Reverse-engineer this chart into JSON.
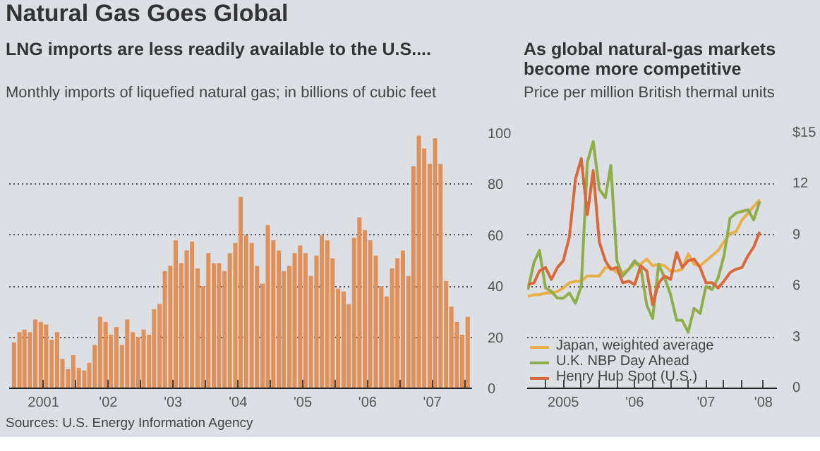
{
  "chart_data": [
    {
      "type": "bar",
      "title": "LNG imports are less readily available to the U.S....",
      "subtitle": "Monthly imports of liquefied natural gas; in billions of cubic feet",
      "annotations": [
        "Natural Gas Goes Global",
        "Sources: U.S. Energy Information Agency"
      ],
      "x": [
        "2001-01",
        "2001-02",
        "2001-03",
        "2001-04",
        "2001-05",
        "2001-06",
        "2001-07",
        "2001-08",
        "2001-09",
        "2001-10",
        "2001-11",
        "2001-12",
        "2002-01",
        "2002-02",
        "2002-03",
        "2002-04",
        "2002-05",
        "2002-06",
        "2002-07",
        "2002-08",
        "2002-09",
        "2002-10",
        "2002-11",
        "2002-12",
        "2003-01",
        "2003-02",
        "2003-03",
        "2003-04",
        "2003-05",
        "2003-06",
        "2003-07",
        "2003-08",
        "2003-09",
        "2003-10",
        "2003-11",
        "2003-12",
        "2004-01",
        "2004-02",
        "2004-03",
        "2004-04",
        "2004-05",
        "2004-06",
        "2004-07",
        "2004-08",
        "2004-09",
        "2004-10",
        "2004-11",
        "2004-12",
        "2005-01",
        "2005-02",
        "2005-03",
        "2005-04",
        "2005-05",
        "2005-06",
        "2005-07",
        "2005-08",
        "2005-09",
        "2005-10",
        "2005-11",
        "2005-12",
        "2006-01",
        "2006-02",
        "2006-03",
        "2006-04",
        "2006-05",
        "2006-06",
        "2006-07",
        "2006-08",
        "2006-09",
        "2006-10",
        "2006-11",
        "2006-12",
        "2007-01",
        "2007-02",
        "2007-03",
        "2007-04",
        "2007-05",
        "2007-06",
        "2007-07",
        "2007-08",
        "2007-09",
        "2007-10",
        "2007-11",
        "2007-12",
        "2008-01"
      ],
      "values": [
        18,
        22,
        23,
        22,
        27,
        26,
        25,
        19,
        22,
        11.5,
        7.5,
        13,
        8,
        7,
        10,
        17,
        28,
        26,
        21,
        24,
        17,
        27,
        22,
        20,
        23,
        21,
        31,
        33,
        46,
        48,
        58,
        49,
        54,
        57.5,
        47,
        40,
        53,
        49,
        49,
        46,
        53,
        57,
        75,
        60,
        57,
        48,
        41,
        64,
        58,
        54,
        46,
        48,
        53,
        56,
        53,
        44,
        52,
        60,
        58,
        51,
        39,
        38,
        33,
        59,
        67,
        62,
        58,
        52,
        40,
        36,
        47,
        51,
        54,
        44,
        87,
        99,
        94,
        88,
        98,
        88,
        42,
        32,
        26,
        21,
        28
      ],
      "color": "#e0915a",
      "xlim": [
        "2000-12-20",
        "2008-02-10"
      ],
      "xticks": [
        {
          "value": "2001-07-01",
          "label": "2001"
        },
        {
          "value": "2002-01-01",
          "label": null
        },
        {
          "value": "2002-07-01",
          "label": "'02"
        },
        {
          "value": "2003-01-01",
          "label": null
        },
        {
          "value": "2003-07-01",
          "label": "'03"
        },
        {
          "value": "2004-01-01",
          "label": null
        },
        {
          "value": "2004-07-01",
          "label": "'04"
        },
        {
          "value": "2005-01-01",
          "label": null
        },
        {
          "value": "2005-07-01",
          "label": "'05"
        },
        {
          "value": "2006-01-01",
          "label": null
        },
        {
          "value": "2006-07-01",
          "label": "'06"
        },
        {
          "value": "2007-01-01",
          "label": null
        },
        {
          "value": "2007-07-01",
          "label": "'07"
        },
        {
          "value": "2008-01-01",
          "label": null
        }
      ],
      "ylim": [
        0,
        100
      ],
      "yticks": [
        0,
        20,
        40,
        60,
        80,
        100
      ],
      "grid": "y"
    },
    {
      "type": "line",
      "title": "As global natural-gas markets become more competitive",
      "subtitle": "Price per million British thermal units",
      "x": [
        "2005-01",
        "2005-02",
        "2005-03",
        "2005-04",
        "2005-05",
        "2005-06",
        "2005-07",
        "2005-08",
        "2005-09",
        "2005-10",
        "2005-11",
        "2005-12",
        "2006-01",
        "2006-02",
        "2006-03",
        "2006-04",
        "2006-05",
        "2006-06",
        "2006-07",
        "2006-08",
        "2006-09",
        "2006-10",
        "2006-11",
        "2006-12",
        "2007-01",
        "2007-02",
        "2007-03",
        "2007-04",
        "2007-05",
        "2007-06",
        "2007-07",
        "2007-08",
        "2007-09",
        "2007-10",
        "2007-11",
        "2007-12",
        "2008-01",
        "2008-02",
        "2008-03",
        "2008-04"
      ],
      "series": [
        {
          "name": "Japan, weighted average",
          "color": "#e8b04a",
          "values": [
            5.4,
            5.5,
            5.5,
            5.6,
            5.6,
            5.7,
            5.9,
            6.2,
            6.3,
            6.3,
            6.6,
            6.6,
            6.6,
            7.1,
            7.1,
            6.8,
            6.8,
            7.0,
            7.3,
            7.3,
            7.6,
            7.2,
            7.3,
            7.2,
            6.9,
            6.9,
            7.0,
            7.9,
            7.3,
            7.2,
            7.5,
            7.8,
            8.1,
            8.6,
            9.1,
            9.2,
            9.9,
            10.3,
            10.7,
            11.1
          ]
        },
        {
          "name": "U.K. NBP Day Ahead",
          "color": "#8fae4a",
          "values": [
            5.8,
            7.4,
            8.1,
            5.9,
            5.7,
            5.3,
            5.3,
            5.6,
            5.0,
            6.0,
            13.3,
            14.5,
            11.7,
            11.2,
            13.1,
            7.5,
            6.6,
            7.0,
            7.5,
            7.1,
            4.9,
            4.1,
            7.3,
            6.5,
            5.5,
            4.0,
            4.0,
            3.3,
            4.7,
            4.4,
            6.0,
            5.8,
            6.5,
            7.8,
            10.0,
            10.3,
            10.4,
            10.5,
            9.9,
            11.0
          ]
        },
        {
          "name": "Henry Hub Spot (U.S.)",
          "color": "#d9683a",
          "values": [
            6.1,
            6.2,
            6.9,
            7.1,
            6.4,
            7.1,
            7.5,
            8.9,
            12.3,
            13.5,
            10.2,
            12.8,
            8.6,
            7.5,
            7.0,
            7.1,
            6.2,
            6.3,
            6.1,
            7.2,
            6.9,
            4.9,
            6.2,
            6.6,
            6.4,
            8.0,
            7.1,
            7.5,
            7.6,
            7.1,
            6.2,
            6.2,
            5.9,
            6.3,
            6.8,
            7.0,
            7.1,
            7.8,
            8.3,
            9.2
          ]
        }
      ],
      "xlim": [
        "2004-12-28",
        "2008-06-28"
      ],
      "xticks": [
        {
          "value": "2005-04-01",
          "label": null
        },
        {
          "value": "2005-07-01",
          "label": "2005"
        },
        {
          "value": "2005-10-01",
          "label": null
        },
        {
          "value": "2006-01-01",
          "label": null
        },
        {
          "value": "2006-04-01",
          "label": null
        },
        {
          "value": "2006-07-01",
          "label": "'06"
        },
        {
          "value": "2006-10-01",
          "label": null
        },
        {
          "value": "2007-01-01",
          "label": null
        },
        {
          "value": "2007-04-01",
          "label": null
        },
        {
          "value": "2007-07-01",
          "label": "'07"
        },
        {
          "value": "2007-10-01",
          "label": null
        },
        {
          "value": "2008-01-01",
          "label": null
        },
        {
          "value": "2008-04-20",
          "label": "'08"
        }
      ],
      "ylim": [
        0,
        15
      ],
      "yticks": [
        0,
        3,
        6,
        9,
        12,
        {
          "value": 15,
          "label": "$15"
        }
      ],
      "grid": "y",
      "legend": "bottom left",
      "line_style": "solid"
    }
  ]
}
